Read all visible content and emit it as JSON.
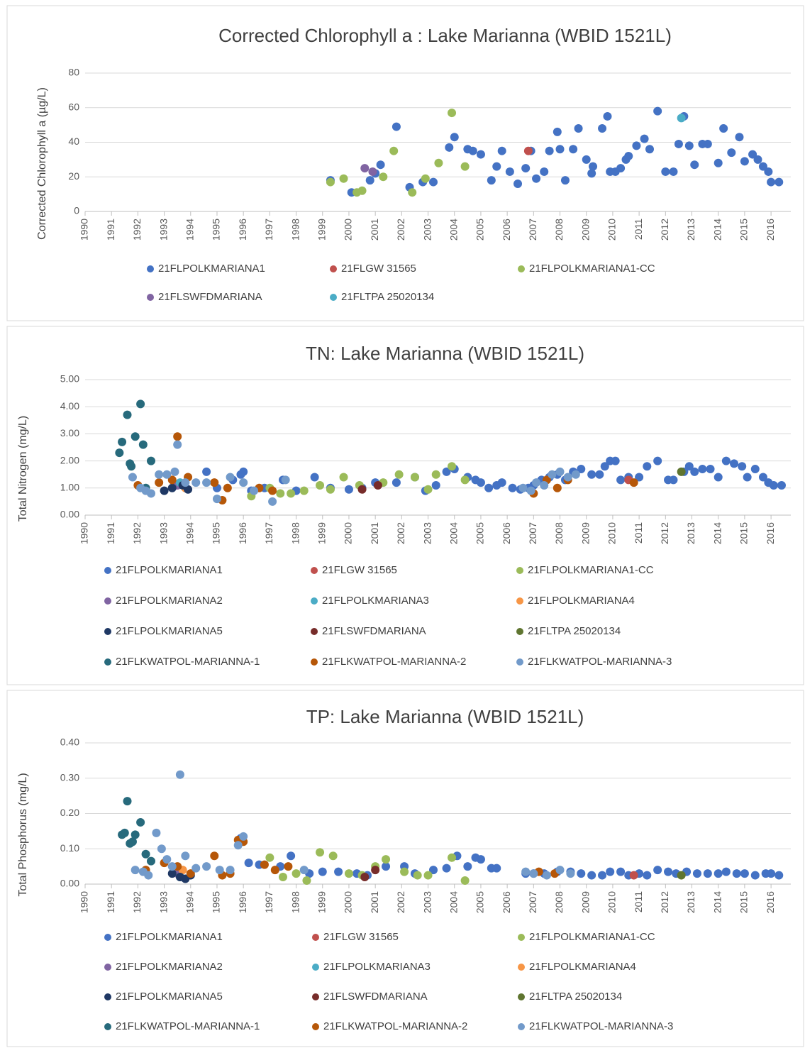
{
  "chart_data": [
    {
      "type": "scatter",
      "title": "Corrected Chlorophyll a : Lake Marianna (WBID 1521L)",
      "y_label": "Corrected Chlorophyll a (µg/L)",
      "xlim": [
        1990,
        2016.75
      ],
      "xticks": [
        1990,
        1991,
        1992,
        1993,
        1994,
        1995,
        1996,
        1997,
        1998,
        1999,
        2000,
        2001,
        2002,
        2003,
        2004,
        2005,
        2006,
        2007,
        2008,
        2009,
        2010,
        2011,
        2012,
        2013,
        2014,
        2015,
        2016
      ],
      "ylim": [
        0,
        80
      ],
      "yticks": [
        0,
        20,
        40,
        60,
        80
      ],
      "grid": true,
      "series": [
        {
          "name": "21FLPOLKMARIANA1",
          "color": "#4472c4",
          "x": [
            1999.3,
            2000.1,
            2000.8,
            2001.0,
            2001.2,
            2001.8,
            2002.3,
            2002.8,
            2003.2,
            2003.8,
            2004.0,
            2004.5,
            2004.7,
            2005.0,
            2005.4,
            2005.6,
            2005.8,
            2006.1,
            2006.4,
            2006.7,
            2006.9,
            2007.1,
            2007.4,
            2007.6,
            2007.9,
            2008.0,
            2008.2,
            2008.5,
            2008.7,
            2009.0,
            2009.2,
            2009.25,
            2009.6,
            2009.8,
            2009.9,
            2010.1,
            2010.3,
            2010.5,
            2010.6,
            2010.9,
            2011.2,
            2011.4,
            2011.7,
            2012.0,
            2012.3,
            2012.5,
            2012.7,
            2012.9,
            2013.1,
            2013.4,
            2013.6,
            2014.0,
            2014.2,
            2014.5,
            2014.8,
            2015.0,
            2015.3,
            2015.5,
            2015.7,
            2015.9,
            2016.0,
            2016.3
          ],
          "values": [
            18,
            11,
            18,
            22,
            27,
            49,
            14,
            17,
            17,
            37,
            43,
            36,
            35,
            33,
            18,
            26,
            35,
            23,
            16,
            25,
            35,
            19,
            23,
            35,
            46,
            36,
            18,
            36,
            48,
            30,
            22,
            26,
            48,
            55,
            23,
            23,
            25,
            30,
            32,
            38,
            42,
            36,
            58,
            23,
            23,
            39,
            55,
            38,
            27,
            39,
            39,
            28,
            48,
            34,
            43,
            29,
            33,
            30,
            26,
            23,
            17,
            17
          ]
        },
        {
          "name": "21FLGW 31565",
          "color": "#c0504d",
          "x": [
            2006.8
          ],
          "values": [
            35
          ]
        },
        {
          "name": "21FLPOLKMARIANA1-CC",
          "color": "#9bbb59",
          "x": [
            1999.3,
            1999.8,
            2000.3,
            2000.5,
            2001.3,
            2001.7,
            2002.4,
            2002.9,
            2003.4,
            2003.9,
            2004.4
          ],
          "values": [
            17,
            19,
            11,
            12,
            20,
            35,
            11,
            19,
            28,
            57,
            26
          ]
        },
        {
          "name": "21FLSWFDMARIANA",
          "color": "#8064a2",
          "x": [
            2000.6,
            2000.9
          ],
          "values": [
            25,
            23
          ]
        },
        {
          "name": "21FLTPA 25020134",
          "color": "#4bacc6",
          "x": [
            2012.6
          ],
          "values": [
            54
          ]
        }
      ]
    },
    {
      "type": "scatter",
      "title": "TN: Lake Marianna (WBID 1521L)",
      "y_label": "Total Nitrogen (mg/L)",
      "xlim": [
        1990,
        2016.75
      ],
      "xticks": [
        1990,
        1991,
        1992,
        1993,
        1994,
        1995,
        1996,
        1997,
        1998,
        1999,
        2000,
        2001,
        2002,
        2003,
        2004,
        2005,
        2006,
        2007,
        2008,
        2009,
        2010,
        2011,
        2012,
        2013,
        2014,
        2015,
        2016
      ],
      "ylim": [
        0,
        5
      ],
      "yticks": [
        {
          "value": 0,
          "label": "0.00"
        },
        {
          "value": 1,
          "label": "1.00"
        },
        {
          "value": 2,
          "label": "2.00"
        },
        {
          "value": 3,
          "label": "3.00"
        },
        {
          "value": 4,
          "label": "4.00"
        },
        {
          "value": 5,
          "label": "5.00"
        }
      ],
      "grid": true,
      "series": [
        {
          "name": "21FLPOLKMARIANA1",
          "color": "#4472c4",
          "x": [
            1994.6,
            1995.0,
            1995.6,
            1995.9,
            1996.0,
            1996.3,
            1996.8,
            1997.5,
            1998.0,
            1998.7,
            1999.3,
            2000.0,
            2000.5,
            2001.0,
            2001.8,
            2002.5,
            2002.9,
            2003.3,
            2003.7,
            2004.0,
            2004.5,
            2004.8,
            2005.0,
            2005.3,
            2005.6,
            2005.8,
            2006.2,
            2006.5,
            2006.8,
            2007.0,
            2007.3,
            2007.6,
            2007.9,
            2008.2,
            2008.5,
            2008.8,
            2009.2,
            2009.5,
            2009.7,
            2009.9,
            2010.1,
            2010.3,
            2010.6,
            2011.0,
            2011.3,
            2011.7,
            2012.1,
            2012.3,
            2012.7,
            2012.9,
            2013.1,
            2013.4,
            2013.7,
            2014.0,
            2014.3,
            2014.6,
            2014.9,
            2015.1,
            2015.4,
            2015.7,
            2015.9,
            2016.1,
            2016.4
          ],
          "values": [
            1.6,
            1.0,
            1.3,
            1.5,
            1.6,
            0.9,
            1.0,
            1.3,
            0.9,
            1.4,
            1.0,
            0.95,
            1.0,
            1.2,
            1.2,
            1.4,
            0.9,
            1.1,
            1.6,
            1.7,
            1.4,
            1.3,
            1.2,
            1.0,
            1.1,
            1.2,
            1.0,
            0.95,
            1.0,
            1.1,
            1.3,
            1.4,
            1.5,
            1.3,
            1.6,
            1.7,
            1.5,
            1.5,
            1.8,
            2.0,
            2.0,
            1.3,
            1.4,
            1.4,
            1.8,
            2.0,
            1.3,
            1.3,
            1.6,
            1.8,
            1.6,
            1.7,
            1.7,
            1.4,
            2.0,
            1.9,
            1.8,
            1.4,
            1.7,
            1.4,
            1.2,
            1.1,
            1.1
          ]
        },
        {
          "name": "21FLGW 31565",
          "color": "#c0504d",
          "x": [
            2010.6
          ],
          "values": [
            1.3
          ]
        },
        {
          "name": "21FLPOLKMARIANA1-CC",
          "color": "#9bbb59",
          "x": [
            1996.3,
            1997.0,
            1997.4,
            1997.8,
            1998.3,
            1998.9,
            1999.3,
            1999.8,
            2000.4,
            2001.3,
            2001.9,
            2002.5,
            2003.0,
            2003.3,
            2003.9,
            2004.4
          ],
          "values": [
            0.7,
            1.0,
            0.8,
            0.8,
            0.9,
            1.1,
            0.95,
            1.4,
            1.1,
            1.2,
            1.5,
            1.4,
            0.95,
            1.5,
            1.8,
            1.3
          ]
        },
        {
          "name": "21FLPOLKMARIANA2",
          "color": "#8064a2",
          "x": [
            1993.5
          ],
          "values": [
            1.1
          ]
        },
        {
          "name": "21FLPOLKMARIANA3",
          "color": "#4bacc6",
          "x": [
            1993.6
          ],
          "values": [
            1.2
          ]
        },
        {
          "name": "21FLPOLKMARIANA4",
          "color": "#f79646",
          "x": [
            1993.8
          ],
          "values": [
            1.0
          ]
        },
        {
          "name": "21FLPOLKMARIANA5",
          "color": "#1f3864",
          "x": [
            1993.0,
            1993.3,
            1993.7,
            1993.9
          ],
          "values": [
            0.9,
            1.0,
            1.1,
            0.95
          ]
        },
        {
          "name": "21FLSWFDMARIANA",
          "color": "#772c2a",
          "x": [
            2000.5,
            2001.1
          ],
          "values": [
            0.95,
            1.1
          ]
        },
        {
          "name": "21FLTPA 25020134",
          "color": "#5f7530",
          "x": [
            2012.6
          ],
          "values": [
            1.6
          ]
        },
        {
          "name": "21FLKWATPOL-MARIANNA-1",
          "color": "#276a7c",
          "x": [
            1991.3,
            1991.4,
            1991.6,
            1991.7,
            1991.75,
            1991.9,
            1992.1,
            1992.2,
            1992.5,
            1992.3
          ],
          "values": [
            2.3,
            2.7,
            3.7,
            1.9,
            1.8,
            2.9,
            4.1,
            2.6,
            2.0,
            1.0
          ]
        },
        {
          "name": "21FLKWATPOL-MARIANNA-2",
          "color": "#b65708",
          "x": [
            1992.0,
            1992.8,
            1993.3,
            1993.5,
            1993.9,
            1994.9,
            1995.2,
            1995.4,
            1996.6,
            1997.1,
            2007.0,
            2007.5,
            2007.9,
            2008.3,
            2010.8
          ],
          "values": [
            1.1,
            1.2,
            1.3,
            2.9,
            1.4,
            1.2,
            0.55,
            1.0,
            1.0,
            0.9,
            0.8,
            1.3,
            1.0,
            1.3,
            1.2
          ]
        },
        {
          "name": "21FLKWATPOL-MARIANNA-3",
          "color": "#729aca",
          "x": [
            1991.8,
            1992.1,
            1992.3,
            1992.5,
            1992.8,
            1993.1,
            1993.4,
            1993.5,
            1993.8,
            1994.2,
            1994.6,
            1995.0,
            1995.5,
            1996.0,
            1996.4,
            1997.1,
            1997.6,
            2006.6,
            2006.9,
            2007.1,
            2007.4,
            2007.7,
            2008.0,
            2008.3,
            2008.6
          ],
          "values": [
            1.4,
            1.0,
            0.9,
            0.8,
            1.5,
            1.5,
            1.6,
            2.6,
            1.2,
            1.2,
            1.2,
            0.6,
            1.4,
            1.2,
            0.9,
            0.5,
            1.3,
            1.0,
            0.9,
            1.2,
            1.1,
            1.5,
            1.6,
            1.4,
            1.5
          ]
        }
      ]
    },
    {
      "type": "scatter",
      "title": "TP: Lake Marianna (WBID 1521L)",
      "y_label": "Total Phosphorus (mg/L)",
      "xlim": [
        1990,
        2016.75
      ],
      "xticks": [
        1990,
        1991,
        1992,
        1993,
        1994,
        1995,
        1996,
        1997,
        1998,
        1999,
        2000,
        2001,
        2002,
        2003,
        2004,
        2005,
        2006,
        2007,
        2008,
        2009,
        2010,
        2011,
        2012,
        2013,
        2014,
        2015,
        2016
      ],
      "ylim": [
        0,
        0.4
      ],
      "yticks": [
        {
          "value": 0,
          "label": "0.00"
        },
        {
          "value": 0.1,
          "label": "0.10"
        },
        {
          "value": 0.2,
          "label": "0.20"
        },
        {
          "value": 0.3,
          "label": "0.30"
        },
        {
          "value": 0.4,
          "label": "0.40"
        }
      ],
      "grid": true,
      "series": [
        {
          "name": "21FLPOLKMARIANA1",
          "color": "#4472c4",
          "x": [
            1995.9,
            1996.2,
            1996.6,
            1997.4,
            1997.8,
            1998.5,
            1999.0,
            1999.6,
            2000.3,
            2000.7,
            2001.4,
            2002.1,
            2002.5,
            2003.2,
            2003.7,
            2004.1,
            2004.5,
            2004.8,
            2005.0,
            2005.4,
            2005.6,
            2006.7,
            2007.0,
            2007.4,
            2007.9,
            2008.4,
            2008.8,
            2009.2,
            2009.6,
            2009.9,
            2010.3,
            2010.6,
            2011.0,
            2011.3,
            2011.7,
            2012.1,
            2012.4,
            2012.8,
            2013.2,
            2013.6,
            2014.0,
            2014.3,
            2014.7,
            2015.0,
            2015.4,
            2015.8,
            2016.0,
            2016.3
          ],
          "values": [
            0.13,
            0.06,
            0.055,
            0.05,
            0.08,
            0.03,
            0.035,
            0.035,
            0.03,
            0.025,
            0.05,
            0.05,
            0.03,
            0.04,
            0.045,
            0.08,
            0.05,
            0.075,
            0.07,
            0.045,
            0.045,
            0.03,
            0.03,
            0.03,
            0.035,
            0.035,
            0.03,
            0.025,
            0.025,
            0.035,
            0.035,
            0.025,
            0.03,
            0.025,
            0.04,
            0.035,
            0.03,
            0.035,
            0.03,
            0.03,
            0.03,
            0.035,
            0.03,
            0.03,
            0.025,
            0.03,
            0.03,
            0.025
          ]
        },
        {
          "name": "21FLGW 31565",
          "color": "#c0504d",
          "x": [
            2010.8
          ],
          "values": [
            0.025
          ]
        },
        {
          "name": "21FLPOLKMARIANA1-CC",
          "color": "#9bbb59",
          "x": [
            1997.0,
            1997.5,
            1998.0,
            1998.4,
            1998.9,
            1999.4,
            2000.0,
            2000.5,
            2001.0,
            2001.4,
            2002.1,
            2002.6,
            2003.0,
            2003.9,
            2004.4
          ],
          "values": [
            0.075,
            0.02,
            0.03,
            0.01,
            0.09,
            0.08,
            0.03,
            0.025,
            0.05,
            0.07,
            0.035,
            0.025,
            0.025,
            0.075,
            0.01
          ]
        },
        {
          "name": "21FLPOLKMARIANA2",
          "color": "#8064a2",
          "x": [
            1993.5
          ],
          "values": [
            0.03
          ]
        },
        {
          "name": "21FLPOLKMARIANA3",
          "color": "#4bacc6",
          "x": [
            1993.6
          ],
          "values": [
            0.02
          ]
        },
        {
          "name": "21FLPOLKMARIANA4",
          "color": "#f79646",
          "x": [
            1993.7
          ],
          "values": [
            0.04
          ]
        },
        {
          "name": "21FLPOLKMARIANA5",
          "color": "#1f3864",
          "x": [
            1993.3,
            1993.6,
            1993.8,
            1994.0
          ],
          "values": [
            0.03,
            0.02,
            0.015,
            0.025
          ]
        },
        {
          "name": "21FLSWFDMARIANA",
          "color": "#772c2a",
          "x": [
            2000.6,
            2001.0
          ],
          "values": [
            0.02,
            0.04
          ]
        },
        {
          "name": "21FLTPA 25020134",
          "color": "#5f7530",
          "x": [
            2012.6
          ],
          "values": [
            0.025
          ]
        },
        {
          "name": "21FLKWATPOL-MARIANNA-1",
          "color": "#276a7c",
          "x": [
            1991.4,
            1991.5,
            1991.6,
            1991.7,
            1991.8,
            1991.9,
            1992.1,
            1992.3,
            1992.5
          ],
          "values": [
            0.14,
            0.145,
            0.235,
            0.115,
            0.12,
            0.14,
            0.175,
            0.085,
            0.065
          ]
        },
        {
          "name": "21FLKWATPOL-MARIANNA-2",
          "color": "#b65708",
          "x": [
            1992.3,
            1993.0,
            1993.5,
            1994.0,
            1994.9,
            1995.2,
            1995.5,
            1995.8,
            1996.0,
            1996.8,
            1997.2,
            1997.7,
            2007.2,
            2007.8
          ],
          "values": [
            0.04,
            0.06,
            0.05,
            0.03,
            0.08,
            0.025,
            0.03,
            0.125,
            0.12,
            0.055,
            0.04,
            0.05,
            0.035,
            0.03
          ]
        },
        {
          "name": "21FLKWATPOL-MARIANNA-3",
          "color": "#729aca",
          "x": [
            1991.9,
            1992.2,
            1992.4,
            1992.7,
            1992.9,
            1993.1,
            1993.3,
            1993.6,
            1993.8,
            1994.2,
            1994.6,
            1995.1,
            1995.5,
            1995.8,
            1996.0,
            1998.3,
            2006.7,
            2007.0,
            2007.5,
            2008.0,
            2008.4
          ],
          "values": [
            0.04,
            0.035,
            0.025,
            0.145,
            0.1,
            0.07,
            0.05,
            0.31,
            0.08,
            0.045,
            0.05,
            0.04,
            0.04,
            0.11,
            0.135,
            0.04,
            0.035,
            0.03,
            0.025,
            0.04,
            0.03
          ]
        }
      ]
    }
  ]
}
